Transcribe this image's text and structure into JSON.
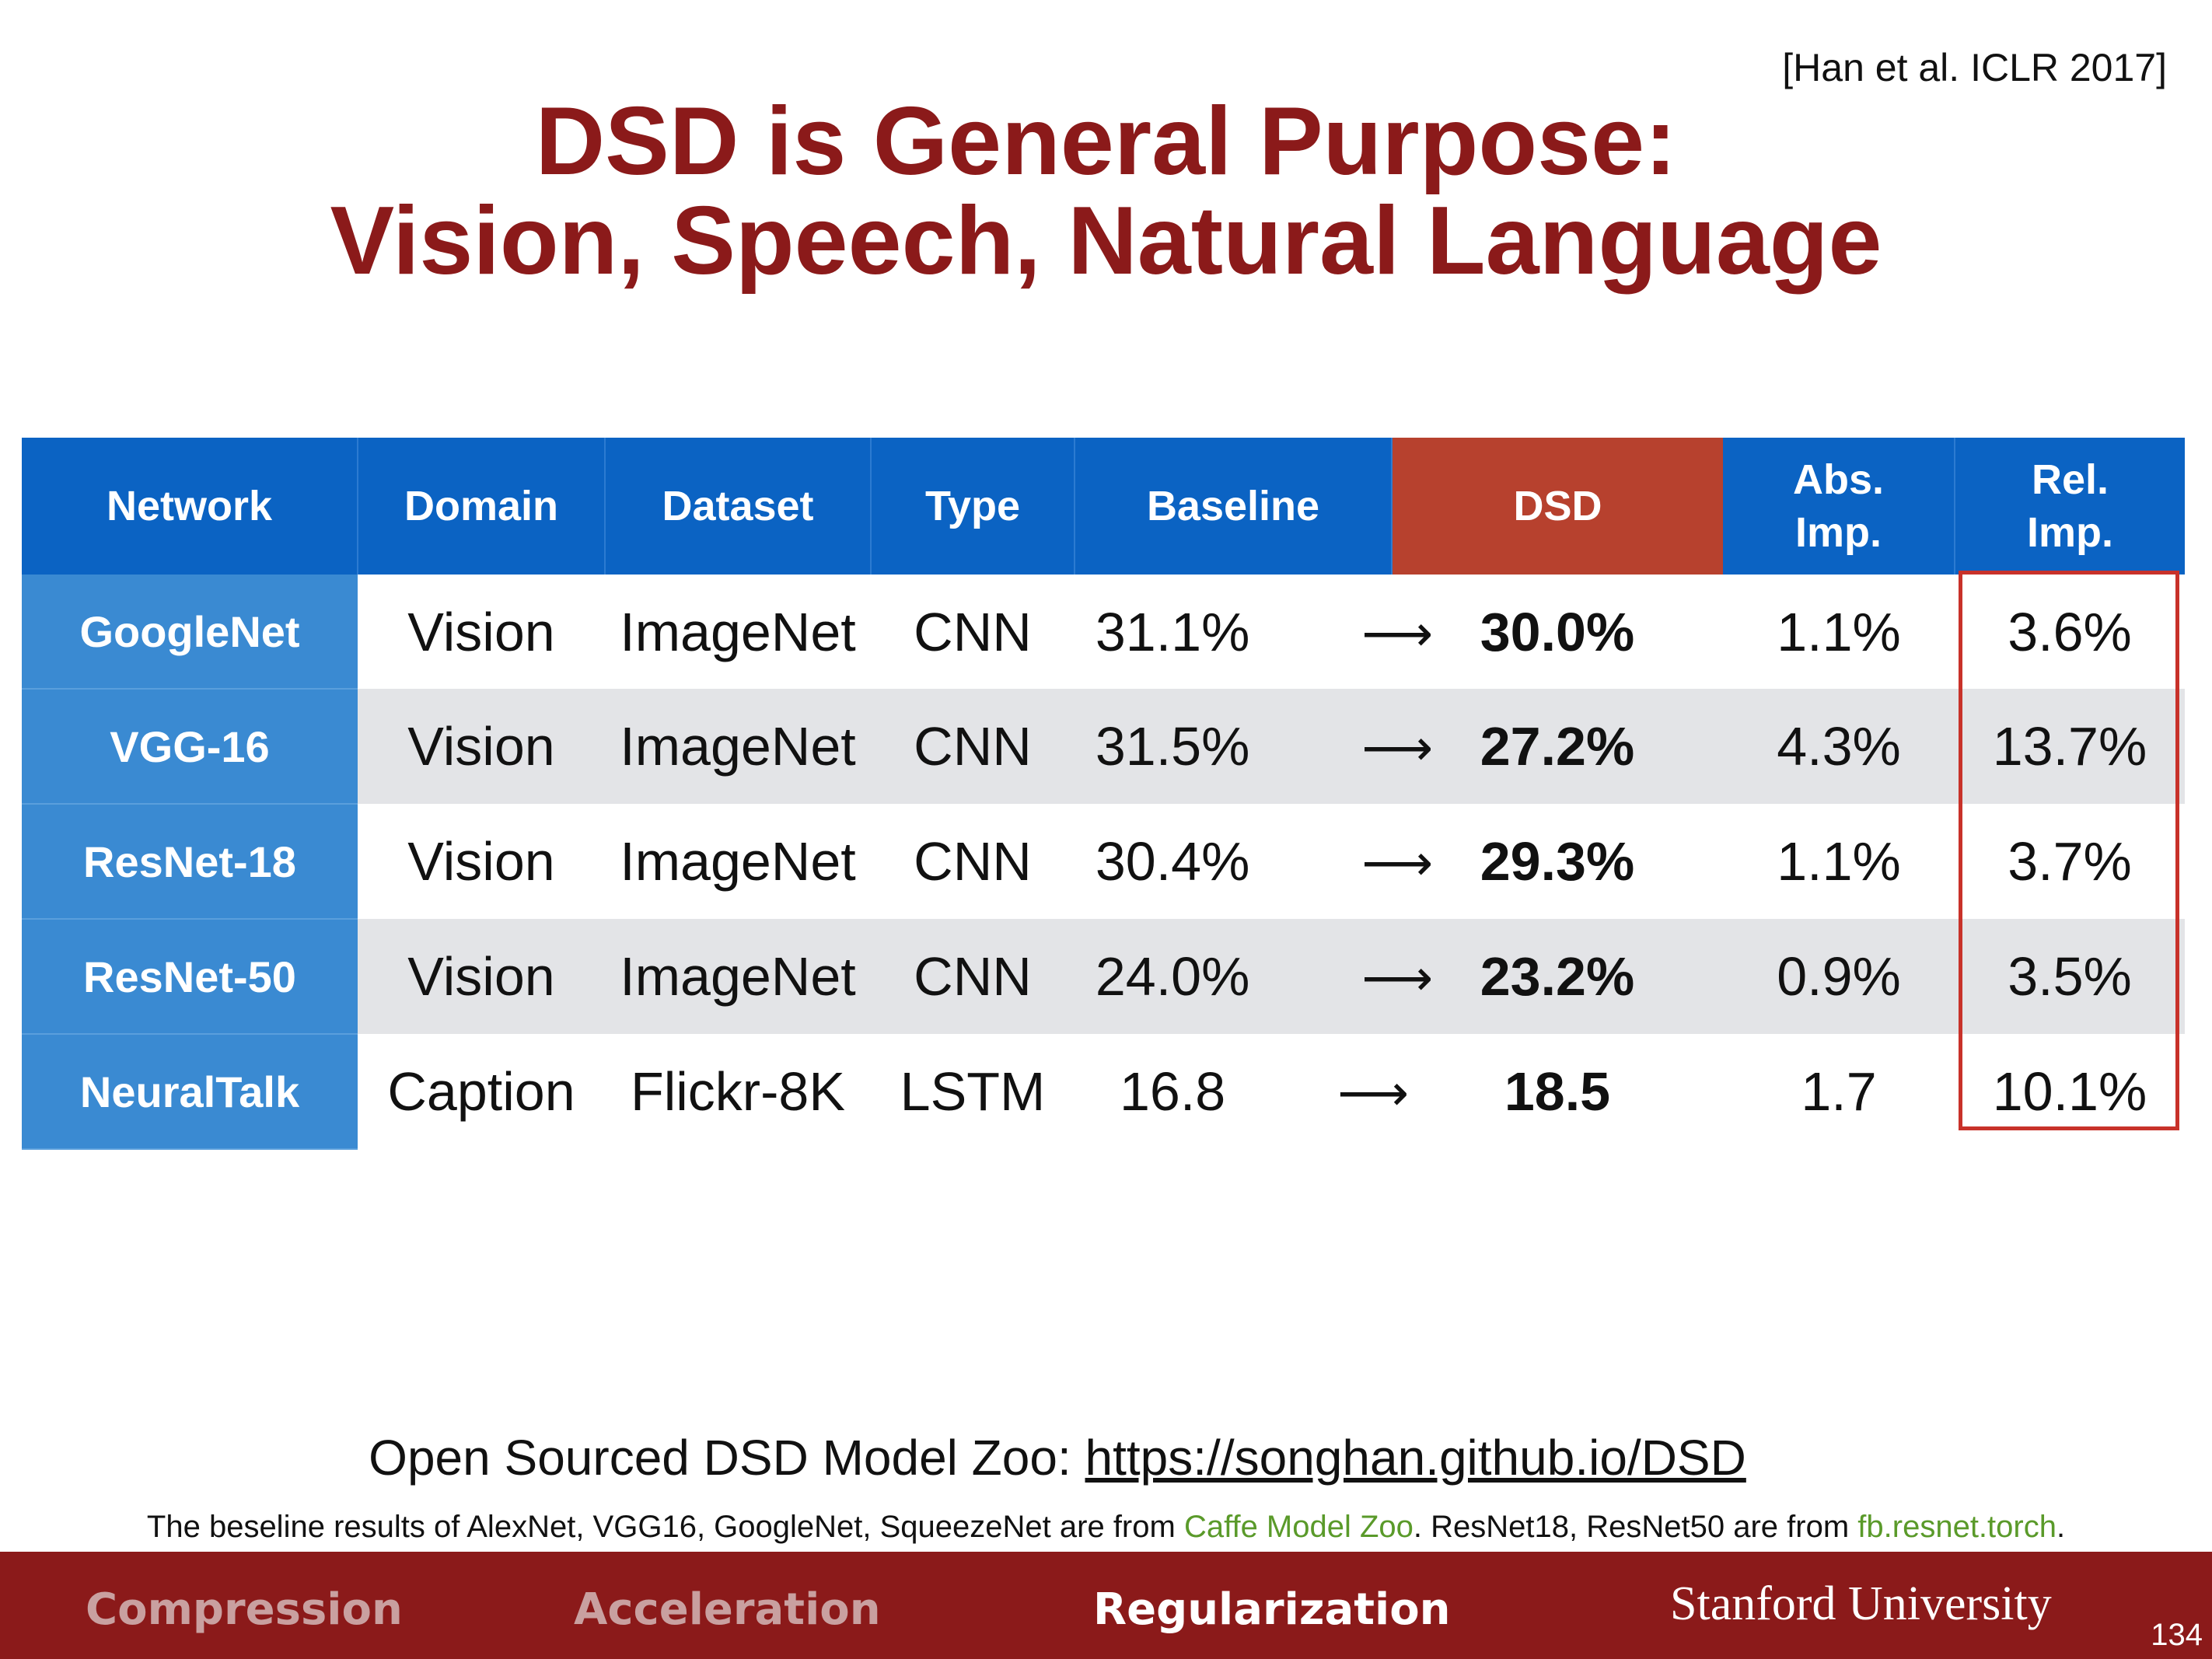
{
  "citation": "[Han et al. ICLR 2017]",
  "title": {
    "line1": "DSD is General Purpose:",
    "line2": "Vision, Speech, Natural Language"
  },
  "table": {
    "headers": {
      "network": "Network",
      "domain": "Domain",
      "dataset": "Dataset",
      "type": "Type",
      "baseline": "Baseline",
      "dsd": "DSD",
      "abs_line1": "Abs.",
      "abs_line2": "Imp.",
      "rel_line1": "Rel.",
      "rel_line2": "Imp."
    },
    "arrow": "⟶",
    "rows": [
      {
        "network": "GoogleNet",
        "domain": "Vision",
        "dataset": "ImageNet",
        "type": "CNN",
        "baseline": "31.1%",
        "dsd": "30.0%",
        "abs": "1.1%",
        "rel": "3.6%"
      },
      {
        "network": "VGG-16",
        "domain": "Vision",
        "dataset": "ImageNet",
        "type": "CNN",
        "baseline": "31.5%",
        "dsd": "27.2%",
        "abs": "4.3%",
        "rel": "13.7%"
      },
      {
        "network": "ResNet-18",
        "domain": "Vision",
        "dataset": "ImageNet",
        "type": "CNN",
        "baseline": "30.4%",
        "dsd": "29.3%",
        "abs": "1.1%",
        "rel": "3.7%"
      },
      {
        "network": "ResNet-50",
        "domain": "Vision",
        "dataset": "ImageNet",
        "type": "CNN",
        "baseline": "24.0%",
        "dsd": "23.2%",
        "abs": "0.9%",
        "rel": "3.5%"
      },
      {
        "network": "NeuralTalk",
        "domain": "Caption",
        "dataset": "Flickr-8K",
        "type": "LSTM",
        "baseline": "16.8",
        "dsd": "18.5",
        "abs": "1.7",
        "rel": "10.1%"
      }
    ]
  },
  "model_zoo": {
    "label": "Open Sourced DSD Model Zoo: ",
    "link": "https://songhan.github.io/DSD"
  },
  "footnote": {
    "part1": "The beseline results of AlexNet, VGG16, GoogleNet, SqueezeNet are from ",
    "link1": "Caffe Model Zoo",
    "part2": ". ResNet18, ResNet50 are from ",
    "link2": "fb.resnet.torch",
    "part3": "."
  },
  "footer": {
    "tab1": "Compression",
    "tab2": "Acceleration",
    "tab3": "Regularization",
    "brand": "Stanford University",
    "page": "134"
  },
  "colors": {
    "title": "#8b1a1a",
    "header_blue": "#0b63c3",
    "network_blue": "#3a8ad2",
    "dsd_header": "#b7412e",
    "highlight_box": "#c8322a",
    "footer_bg": "#8b1a1a",
    "link_green": "#5a9a2a"
  }
}
